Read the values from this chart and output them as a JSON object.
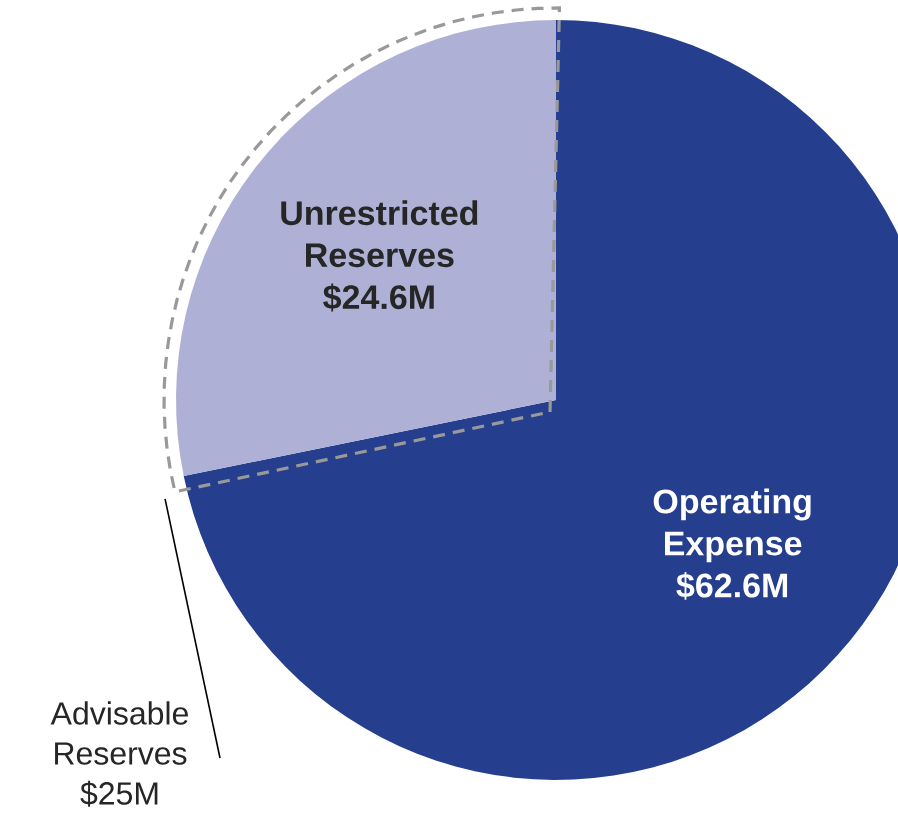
{
  "chart_data": {
    "type": "pie",
    "categories": [
      "Operating Expense",
      "Unrestricted Reserves"
    ],
    "values": [
      62.6,
      24.6
    ],
    "colors": [
      "#253f8e",
      "#aeb1d5"
    ],
    "value_labels": [
      "$62.6M",
      "$24.6M"
    ],
    "annotations": [
      "Advisable Reserves $25M"
    ]
  }
}
